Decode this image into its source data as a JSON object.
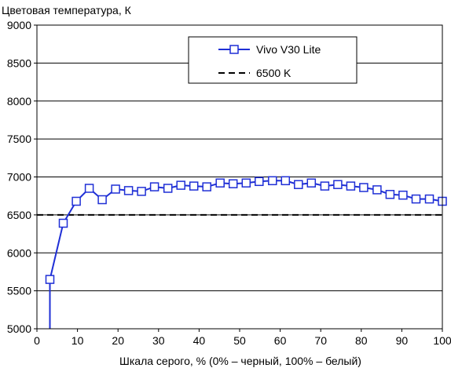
{
  "chart_data": {
    "type": "line",
    "title": "Цветовая температура, К",
    "xlabel": "Шкала серого, % (0% – черный, 100% – белый)",
    "ylabel": "",
    "xlim": [
      0,
      100
    ],
    "ylim": [
      5000,
      9000
    ],
    "x_ticks": [
      0,
      10,
      20,
      30,
      40,
      50,
      60,
      70,
      80,
      90,
      100
    ],
    "y_ticks": [
      5000,
      5500,
      6000,
      6500,
      7000,
      7500,
      8000,
      8500,
      9000
    ],
    "grid": "horizontal",
    "legend_position": "top-right",
    "series": [
      {
        "name": "Vivo V30 Lite",
        "color": "#1f2fd6",
        "marker": "open-square",
        "x": [
          3.2,
          6.5,
          9.7,
          12.9,
          16.1,
          19.4,
          22.6,
          25.8,
          29.0,
          32.3,
          35.5,
          38.7,
          41.9,
          45.2,
          48.4,
          51.6,
          54.8,
          58.1,
          61.3,
          64.5,
          67.7,
          71.0,
          74.2,
          77.4,
          80.6,
          83.9,
          87.1,
          90.3,
          93.5,
          96.8,
          100
        ],
        "y": [
          5650,
          6390,
          6680,
          6850,
          6700,
          6840,
          6820,
          6810,
          6870,
          6850,
          6890,
          6880,
          6870,
          6920,
          6910,
          6920,
          6940,
          6950,
          6950,
          6900,
          6920,
          6880,
          6900,
          6880,
          6860,
          6830,
          6770,
          6760,
          6710,
          6710,
          6680
        ],
        "y_start_below_axis": 4950,
        "x_start_below_axis": 3.2
      },
      {
        "name": "6500 K",
        "color": "#000000",
        "style": "dashed",
        "value": 6500
      }
    ]
  }
}
